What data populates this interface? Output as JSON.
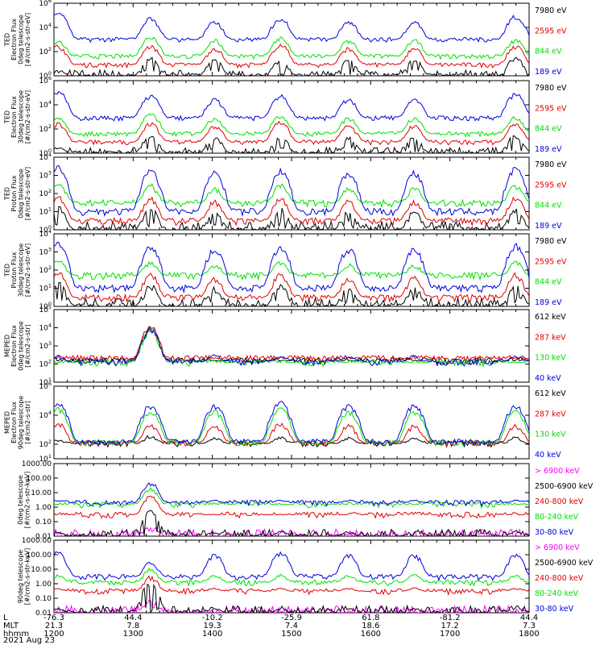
{
  "figure": {
    "date": "2021 Aug 23",
    "xaxis_rows": [
      {
        "label": "L",
        "values": [
          "-76.3",
          "44.4",
          "-10.2",
          "-25.9",
          "61.8",
          "-81.2",
          "44.4"
        ]
      },
      {
        "label": "MLT",
        "values": [
          "21.3",
          "7.8",
          "19.3",
          "7.4",
          "18.6",
          "17.2",
          "7.3"
        ]
      },
      {
        "label": "hhmm",
        "values": [
          "1200",
          "1300",
          "1400",
          "1500",
          "1600",
          "1700",
          "1800"
        ]
      }
    ]
  },
  "chart_data": [
    {
      "type": "line",
      "ylabel": [
        "TED",
        "Electron Flux",
        "0deg telescope",
        "[#/cm2-s-str-eV]"
      ],
      "scale": "log",
      "ylim": [
        1,
        1000000
      ],
      "yticks": [
        {
          "exp": "0",
          "v": 1
        },
        {
          "exp": "2",
          "v": 100
        },
        {
          "exp": "4",
          "v": 10000
        },
        {
          "exp": "6",
          "v": 1000000
        }
      ],
      "series": [
        {
          "name": "7980 eV",
          "color": "#000000",
          "baseline": 1,
          "peaks": [
            3,
            30,
            20,
            20,
            20,
            20,
            30
          ]
        },
        {
          "name": "2595 eV",
          "color": "#e00000",
          "baseline": 8,
          "peaks": [
            300,
            300,
            200,
            400,
            200,
            200,
            300
          ]
        },
        {
          "name": "844 eV",
          "color": "#00e000",
          "baseline": 40,
          "peaks": [
            800,
            2000,
            900,
            1500,
            800,
            900,
            1000
          ]
        },
        {
          "name": "189 eV",
          "color": "#0000e0",
          "baseline": 1000,
          "peaks": [
            200000,
            60000,
            30000,
            60000,
            30000,
            30000,
            90000
          ]
        }
      ]
    },
    {
      "type": "line",
      "ylabel": [
        "TED",
        "Electron Flux",
        "30deg telescope",
        "[#/cm2-s-str-eV]"
      ],
      "scale": "log",
      "ylim": [
        1,
        1000000
      ],
      "yticks": [
        {
          "exp": "0",
          "v": 1
        },
        {
          "exp": "2",
          "v": 100
        },
        {
          "exp": "4",
          "v": 10000
        },
        {
          "exp": "6",
          "v": 1000000
        }
      ],
      "series": [
        {
          "name": "7980 eV",
          "color": "#000000",
          "baseline": 1,
          "peaks": [
            3,
            30,
            20,
            20,
            20,
            20,
            30
          ]
        },
        {
          "name": "2595 eV",
          "color": "#e00000",
          "baseline": 8,
          "peaks": [
            300,
            300,
            200,
            400,
            200,
            200,
            300
          ]
        },
        {
          "name": "844 eV",
          "color": "#00e000",
          "baseline": 40,
          "peaks": [
            800,
            2000,
            900,
            1500,
            800,
            900,
            1000
          ]
        },
        {
          "name": "189 eV",
          "color": "#0000e0",
          "baseline": 800,
          "peaks": [
            150000,
            60000,
            30000,
            60000,
            30000,
            30000,
            80000
          ]
        }
      ]
    },
    {
      "type": "line",
      "ylabel": [
        "TED",
        "Proton Flux",
        "0deg telescope",
        "[#/cm2-s-str-eV]"
      ],
      "scale": "log",
      "ylim": [
        1,
        10000
      ],
      "yticks": [
        {
          "exp": "0",
          "v": 1
        },
        {
          "exp": "1",
          "v": 10
        },
        {
          "exp": "2",
          "v": 100
        },
        {
          "exp": "3",
          "v": 1000
        },
        {
          "exp": "4",
          "v": 10000
        }
      ],
      "series": [
        {
          "name": "7980 eV",
          "color": "#000000",
          "baseline": 1,
          "peaks": [
            20,
            15,
            10,
            15,
            10,
            10,
            15
          ]
        },
        {
          "name": "2595 eV",
          "color": "#e00000",
          "baseline": 3,
          "peaks": [
            80,
            60,
            40,
            60,
            40,
            40,
            60
          ]
        },
        {
          "name": "844 eV",
          "color": "#00e000",
          "baseline": 30,
          "peaks": [
            400,
            300,
            200,
            300,
            200,
            200,
            300
          ]
        },
        {
          "name": "189 eV",
          "color": "#0000e0",
          "baseline": 10,
          "peaks": [
            3000,
            2000,
            1500,
            2000,
            1500,
            1500,
            2500
          ]
        }
      ]
    },
    {
      "type": "line",
      "ylabel": [
        "TED",
        "Proton Flux",
        "30deg telescope",
        "[#/cm2-s-str-eV]"
      ],
      "scale": "log",
      "ylim": [
        1,
        10000
      ],
      "yticks": [
        {
          "exp": "0",
          "v": 1
        },
        {
          "exp": "1",
          "v": 10
        },
        {
          "exp": "2",
          "v": 100
        },
        {
          "exp": "3",
          "v": 1000
        },
        {
          "exp": "4",
          "v": 10000
        }
      ],
      "series": [
        {
          "name": "7980 eV",
          "color": "#000000",
          "baseline": 1,
          "peaks": [
            20,
            15,
            10,
            15,
            10,
            10,
            15
          ]
        },
        {
          "name": "2595 eV",
          "color": "#e00000",
          "baseline": 3,
          "peaks": [
            80,
            60,
            40,
            60,
            40,
            40,
            60
          ]
        },
        {
          "name": "844 eV",
          "color": "#00e000",
          "baseline": 50,
          "peaks": [
            400,
            300,
            200,
            300,
            200,
            200,
            300
          ]
        },
        {
          "name": "189 eV",
          "color": "#0000e0",
          "baseline": 10,
          "peaks": [
            3000,
            2000,
            1500,
            2000,
            1500,
            1500,
            2500
          ]
        }
      ]
    },
    {
      "type": "line",
      "ylabel": [
        "MEPED",
        "Electron Flux",
        "0deg telescope",
        "[#/cm2-s-str]"
      ],
      "scale": "log",
      "ylim": [
        10,
        100000
      ],
      "yticks": [
        {
          "exp": "1",
          "v": 10
        },
        {
          "exp": "2",
          "v": 100
        },
        {
          "exp": "3",
          "v": 1000
        },
        {
          "exp": "4",
          "v": 10000
        },
        {
          "exp": "5",
          "v": 100000
        }
      ],
      "series": [
        {
          "name": "612 keV",
          "color": "#000000",
          "baseline": 150,
          "peaks": [
            150,
            10000,
            150,
            150,
            150,
            150,
            150
          ]
        },
        {
          "name": "287 keV",
          "color": "#e00000",
          "baseline": 200,
          "peaks": [
            200,
            12000,
            200,
            200,
            200,
            200,
            200
          ]
        },
        {
          "name": "130 keV",
          "color": "#00e000",
          "baseline": 120,
          "peaks": [
            120,
            8000,
            120,
            120,
            120,
            120,
            120
          ]
        },
        {
          "name": "40 keV",
          "color": "#0000e0",
          "baseline": 130,
          "peaks": [
            300,
            9000,
            300,
            300,
            300,
            300,
            300
          ]
        }
      ]
    },
    {
      "type": "line",
      "ylabel": [
        "MEPED",
        "Electron Flux",
        "90deg telescope",
        "[#/cm2-s-str]"
      ],
      "scale": "log",
      "ylim": [
        10,
        1000000
      ],
      "yticks": [
        {
          "exp": "1",
          "v": 10
        },
        {
          "exp": "2",
          "v": 100
        },
        {
          "exp": "4",
          "v": 10000
        },
        {
          "exp": "6",
          "v": 1000000
        }
      ],
      "series": [
        {
          "name": "612 keV",
          "color": "#000000",
          "baseline": 110,
          "peaks": [
            200,
            400,
            300,
            300,
            300,
            300,
            300
          ]
        },
        {
          "name": "287 keV",
          "color": "#e00000",
          "baseline": 120,
          "peaks": [
            3000,
            2000,
            2000,
            3000,
            2000,
            2000,
            2000
          ]
        },
        {
          "name": "130 keV",
          "color": "#00e000",
          "baseline": 130,
          "peaks": [
            30000,
            20000,
            20000,
            30000,
            20000,
            20000,
            20000
          ]
        },
        {
          "name": "40 keV",
          "color": "#0000e0",
          "baseline": 150,
          "peaks": [
            80000,
            50000,
            50000,
            80000,
            50000,
            50000,
            50000
          ]
        }
      ]
    },
    {
      "type": "line",
      "ylabel": [
        "0deg telescope",
        "[#/cm2-s-str-keV]"
      ],
      "scale": "log",
      "ylim": [
        0.01,
        1000
      ],
      "yticks": [
        {
          "text": "1000.00",
          "v": 1000
        },
        {
          "text": "100.00",
          "v": 100
        },
        {
          "text": "10.00",
          "v": 10
        },
        {
          "text": "1.00",
          "v": 1
        },
        {
          "text": "0.10",
          "v": 0.1
        },
        {
          "text": "0.01",
          "v": 0.01
        }
      ],
      "series": [
        {
          "name": "> 6900 keV",
          "color": "#ff00ff",
          "baseline": 0.01,
          "peaks": [
            0.01,
            0.05,
            0.01,
            0.01,
            0.01,
            0.01,
            0.01
          ]
        },
        {
          "name": "2500-6900 keV",
          "color": "#000000",
          "baseline": 0.01,
          "peaks": [
            0.02,
            0.5,
            0.02,
            0.02,
            0.02,
            0.02,
            0.02
          ]
        },
        {
          "name": "240-800 keV",
          "color": "#e00000",
          "baseline": 0.3,
          "peaks": [
            0.3,
            6,
            0.3,
            0.3,
            0.3,
            0.3,
            0.3
          ]
        },
        {
          "name": "80-240 keV",
          "color": "#00e000",
          "baseline": 1.5,
          "peaks": [
            1.5,
            20,
            1.5,
            1.5,
            1.5,
            1.5,
            1.5
          ]
        },
        {
          "name": "30-80 keV",
          "color": "#0000e0",
          "baseline": 2,
          "peaks": [
            3,
            50,
            3,
            3,
            3,
            3,
            3
          ]
        }
      ]
    },
    {
      "type": "line",
      "ylabel": [
        "90deg telescope",
        "[#/cm2-s-str-keV]"
      ],
      "scale": "log",
      "ylim": [
        0.01,
        1000
      ],
      "yticks": [
        {
          "text": "1000.00",
          "v": 1000
        },
        {
          "text": "100.00",
          "v": 100
        },
        {
          "text": "10.00",
          "v": 10
        },
        {
          "text": "1.00",
          "v": 1
        },
        {
          "text": "0.10",
          "v": 0.1
        },
        {
          "text": "0.01",
          "v": 0.01
        }
      ],
      "series": [
        {
          "name": "> 6900 keV",
          "color": "#ff00ff",
          "baseline": 0.01,
          "peaks": [
            0.01,
            0.08,
            0.01,
            0.01,
            0.01,
            0.01,
            0.01
          ]
        },
        {
          "name": "2500-6900 keV",
          "color": "#000000",
          "baseline": 0.01,
          "peaks": [
            0.02,
            1,
            0.02,
            0.02,
            0.02,
            0.02,
            0.02
          ]
        },
        {
          "name": "240-800 keV",
          "color": "#e00000",
          "baseline": 0.3,
          "peaks": [
            0.5,
            3,
            0.5,
            0.5,
            0.5,
            0.5,
            0.5
          ]
        },
        {
          "name": "80-240 keV",
          "color": "#00e000",
          "baseline": 1.2,
          "peaks": [
            4,
            10,
            4,
            4,
            4,
            4,
            4
          ]
        },
        {
          "name": "30-80 keV",
          "color": "#0000e0",
          "baseline": 3,
          "peaks": [
            150,
            30,
            100,
            150,
            100,
            100,
            100
          ]
        }
      ]
    }
  ]
}
